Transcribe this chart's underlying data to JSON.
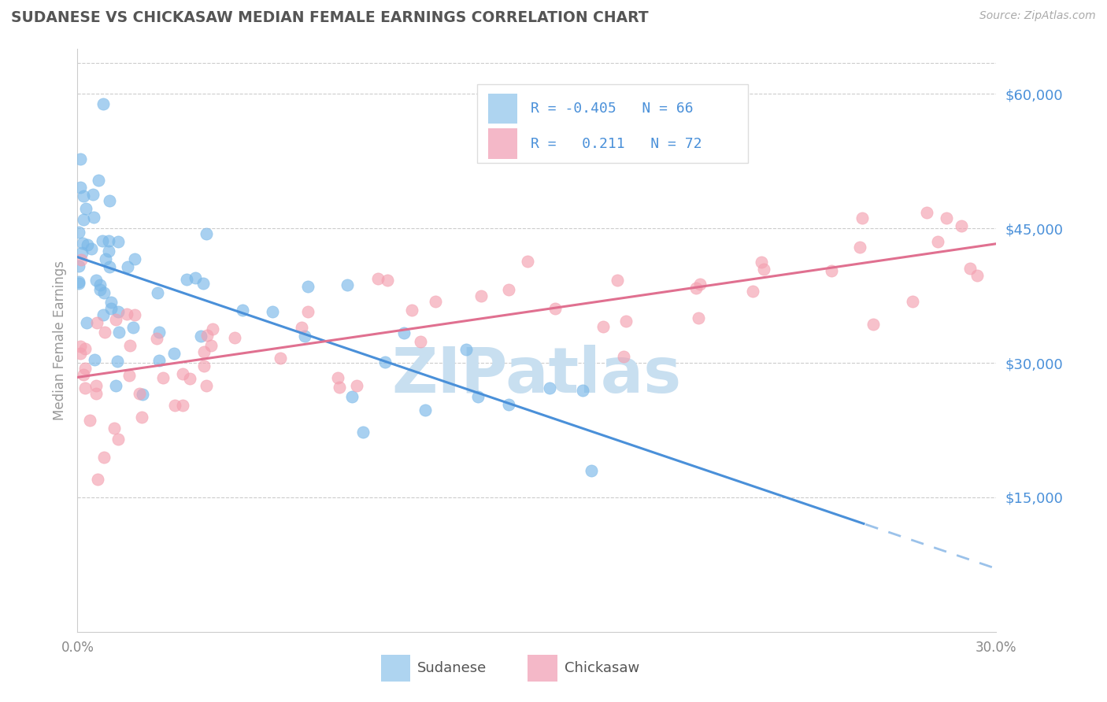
{
  "title": "SUDANESE VS CHICKASAW MEDIAN FEMALE EARNINGS CORRELATION CHART",
  "source": "Source: ZipAtlas.com",
  "ylabel": "Median Female Earnings",
  "x_min": 0.0,
  "x_max": 0.3,
  "y_min": 0,
  "y_max": 65000,
  "sudanese_color": "#7ab8e8",
  "chickasaw_color": "#f4a0b0",
  "trend_blue": "#4a90d9",
  "trend_pink": "#e07090",
  "sudanese_R": -0.405,
  "sudanese_N": 66,
  "chickasaw_R": 0.211,
  "chickasaw_N": 72,
  "watermark": "ZIPatlas",
  "watermark_color": "#c8dff0",
  "grid_color": "#cccccc",
  "axis_label_color": "#4a90d9",
  "title_color": "#555555",
  "legend_box_color": "#aed4f0",
  "legend_pink_color": "#f4b8c8"
}
